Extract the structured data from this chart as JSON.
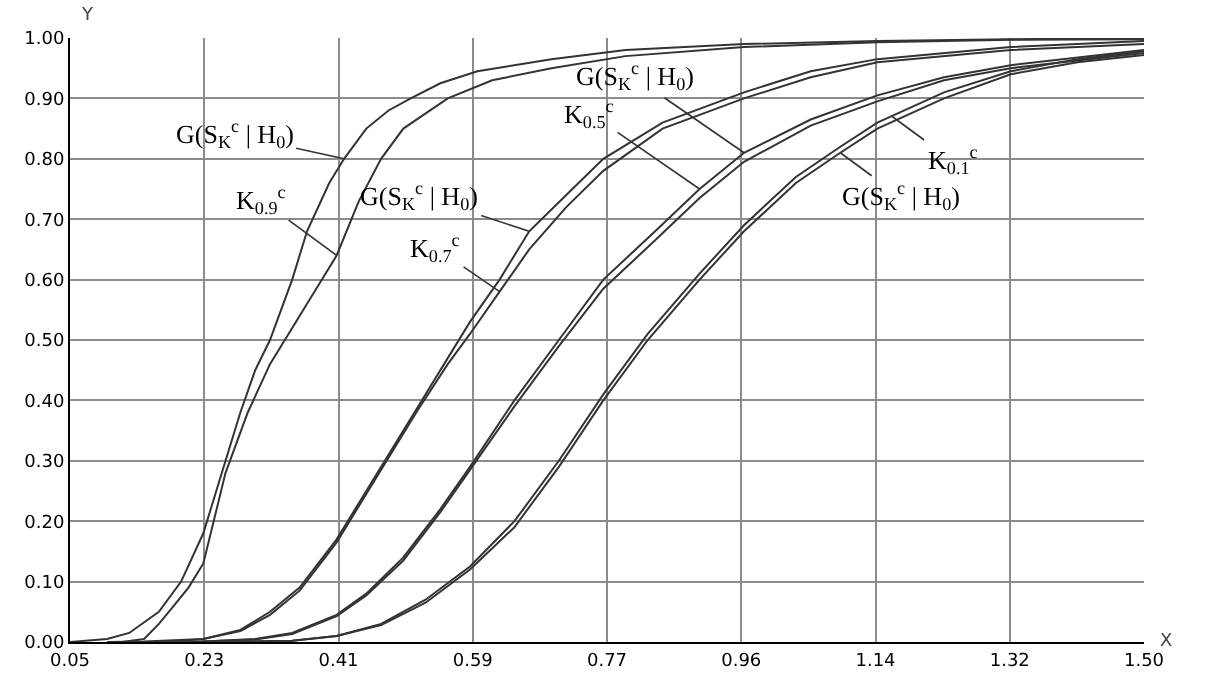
{
  "chart_data": {
    "type": "line",
    "xlabel": "X",
    "ylabel": "Y",
    "grid": true,
    "marker": "none",
    "line_style": "solid",
    "xlim": [
      0.05,
      1.5
    ],
    "ylim": [
      0,
      1.0
    ],
    "xticks": [
      {
        "value": 0.05,
        "label": "0.05"
      },
      {
        "value": 0.23125,
        "label": "0.23"
      },
      {
        "value": 0.4125,
        "label": "0.41"
      },
      {
        "value": 0.59375,
        "label": "0.59"
      },
      {
        "value": 0.775,
        "label": "0.77"
      },
      {
        "value": 0.95625,
        "label": "0.96"
      },
      {
        "value": 1.1375,
        "label": "1.14"
      },
      {
        "value": 1.31875,
        "label": "1.32"
      },
      {
        "value": 1.5,
        "label": "1.50"
      }
    ],
    "yticks": [
      {
        "value": 0,
        "label": "0.00"
      },
      {
        "value": 0.1,
        "label": "0.10"
      },
      {
        "value": 0.2,
        "label": "0.20"
      },
      {
        "value": 0.3,
        "label": "0.30"
      },
      {
        "value": 0.4,
        "label": "0.40"
      },
      {
        "value": 0.5,
        "label": "0.50"
      },
      {
        "value": 0.6,
        "label": "0.60"
      },
      {
        "value": 0.7,
        "label": "0.70"
      },
      {
        "value": 0.8,
        "label": "0.80"
      },
      {
        "value": 0.9,
        "label": "0.90"
      },
      {
        "value": 1.0,
        "label": "1.00"
      }
    ],
    "series": [
      {
        "color": "#333333",
        "x": [
          0.05,
          0.1,
          0.13,
          0.17,
          0.2,
          0.23,
          0.26,
          0.28,
          0.3,
          0.32,
          0.35,
          0.37,
          0.4,
          0.42,
          0.45,
          0.48,
          0.51,
          0.55,
          0.6,
          0.7,
          0.8,
          0.96,
          1.14,
          1.32,
          1.5
        ],
        "values": [
          0,
          0.005,
          0.015,
          0.05,
          0.1,
          0.18,
          0.3,
          0.38,
          0.45,
          0.5,
          0.6,
          0.68,
          0.76,
          0.8,
          0.85,
          0.88,
          0.9,
          0.925,
          0.945,
          0.965,
          0.98,
          0.99,
          0.995,
          0.998,
          1.0
        ]
      },
      {
        "color": "#333333",
        "x": [
          0.12,
          0.15,
          0.17,
          0.19,
          0.21,
          0.23,
          0.26,
          0.29,
          0.32,
          0.35,
          0.38,
          0.41,
          0.44,
          0.47,
          0.5,
          0.56,
          0.62,
          0.7,
          0.8,
          0.96,
          1.14,
          1.32,
          1.5
        ],
        "values": [
          0,
          0.005,
          0.03,
          0.06,
          0.09,
          0.13,
          0.28,
          0.38,
          0.46,
          0.52,
          0.58,
          0.64,
          0.73,
          0.8,
          0.85,
          0.9,
          0.93,
          0.95,
          0.97,
          0.985,
          0.993,
          0.997,
          0.998
        ]
      },
      {
        "color": "#333333",
        "x": [
          0.1,
          0.15,
          0.23,
          0.28,
          0.32,
          0.36,
          0.41,
          0.45,
          0.48,
          0.52,
          0.56,
          0.59,
          0.63,
          0.67,
          0.72,
          0.77,
          0.85,
          0.96,
          1.05,
          1.14,
          1.32,
          1.5
        ],
        "values": [
          0,
          0.001,
          0.005,
          0.02,
          0.05,
          0.09,
          0.17,
          0.25,
          0.31,
          0.39,
          0.47,
          0.53,
          0.6,
          0.68,
          0.74,
          0.8,
          0.86,
          0.91,
          0.945,
          0.965,
          0.985,
          0.995
        ]
      },
      {
        "color": "#333333",
        "x": [
          0.18,
          0.23,
          0.28,
          0.32,
          0.36,
          0.41,
          0.45,
          0.48,
          0.52,
          0.56,
          0.59,
          0.63,
          0.67,
          0.72,
          0.77,
          0.85,
          0.96,
          1.05,
          1.14,
          1.32,
          1.5
        ],
        "values": [
          0,
          0.005,
          0.018,
          0.045,
          0.085,
          0.165,
          0.245,
          0.305,
          0.385,
          0.46,
          0.51,
          0.58,
          0.65,
          0.72,
          0.78,
          0.85,
          0.9,
          0.935,
          0.96,
          0.98,
          0.99
        ]
      },
      {
        "color": "#333333",
        "x": [
          0.15,
          0.23,
          0.3,
          0.35,
          0.41,
          0.45,
          0.5,
          0.55,
          0.59,
          0.65,
          0.71,
          0.77,
          0.84,
          0.9,
          0.96,
          1.05,
          1.14,
          1.23,
          1.32,
          1.5
        ],
        "values": [
          0,
          0.001,
          0.005,
          0.015,
          0.045,
          0.08,
          0.14,
          0.22,
          0.29,
          0.4,
          0.5,
          0.6,
          0.68,
          0.75,
          0.81,
          0.865,
          0.905,
          0.935,
          0.955,
          0.98
        ]
      },
      {
        "color": "#333333",
        "x": [
          0.22,
          0.23,
          0.3,
          0.35,
          0.41,
          0.45,
          0.5,
          0.55,
          0.59,
          0.65,
          0.71,
          0.77,
          0.84,
          0.9,
          0.96,
          1.05,
          1.14,
          1.23,
          1.32,
          1.5
        ],
        "values": [
          0,
          0.001,
          0.004,
          0.013,
          0.043,
          0.077,
          0.135,
          0.215,
          0.285,
          0.39,
          0.49,
          0.585,
          0.665,
          0.735,
          0.795,
          0.855,
          0.895,
          0.93,
          0.95,
          0.975
        ]
      },
      {
        "color": "#333333",
        "x": [
          0.2,
          0.35,
          0.41,
          0.47,
          0.53,
          0.59,
          0.65,
          0.71,
          0.77,
          0.83,
          0.9,
          0.96,
          1.03,
          1.09,
          1.14,
          1.23,
          1.32,
          1.41,
          1.5
        ],
        "values": [
          0,
          0.002,
          0.01,
          0.03,
          0.07,
          0.125,
          0.2,
          0.3,
          0.41,
          0.51,
          0.61,
          0.69,
          0.77,
          0.82,
          0.86,
          0.91,
          0.945,
          0.965,
          0.978
        ]
      },
      {
        "color": "#333333",
        "x": [
          0.28,
          0.35,
          0.41,
          0.47,
          0.53,
          0.59,
          0.65,
          0.71,
          0.77,
          0.83,
          0.9,
          0.96,
          1.03,
          1.09,
          1.14,
          1.23,
          1.32,
          1.41,
          1.5
        ],
        "values": [
          0,
          0.002,
          0.01,
          0.028,
          0.065,
          0.12,
          0.19,
          0.29,
          0.4,
          0.5,
          0.6,
          0.68,
          0.76,
          0.81,
          0.85,
          0.9,
          0.94,
          0.96,
          0.972
        ]
      }
    ],
    "annotations": [
      {
        "text": "G(S$_{K}$$^{c}$ | H$_{0}$)",
        "x": 0.42,
        "y": 0.8
      },
      {
        "text": "K$_{0.9}$$^{c}$",
        "x": 0.41,
        "y": 0.64
      },
      {
        "text": "G(S$_{K}$$^{c}$ | H$_{0}$)",
        "x": 0.67,
        "y": 0.68
      },
      {
        "text": "K$_{0.7}$$^{c}$",
        "x": 0.63,
        "y": 0.58
      },
      {
        "text": "G(S$_{K}$$^{c}$ | H$_{0}$)",
        "x": 0.96,
        "y": 0.81
      },
      {
        "text": "K$_{0.5}$$^{c}$",
        "x": 0.9,
        "y": 0.75
      },
      {
        "text": "K$_{0.1}$$^{c}$",
        "x": 1.16,
        "y": 0.87
      },
      {
        "text": "G(S$_{K}$$^{c}$ | H$_{0}$)",
        "x": 1.09,
        "y": 0.81
      }
    ]
  }
}
